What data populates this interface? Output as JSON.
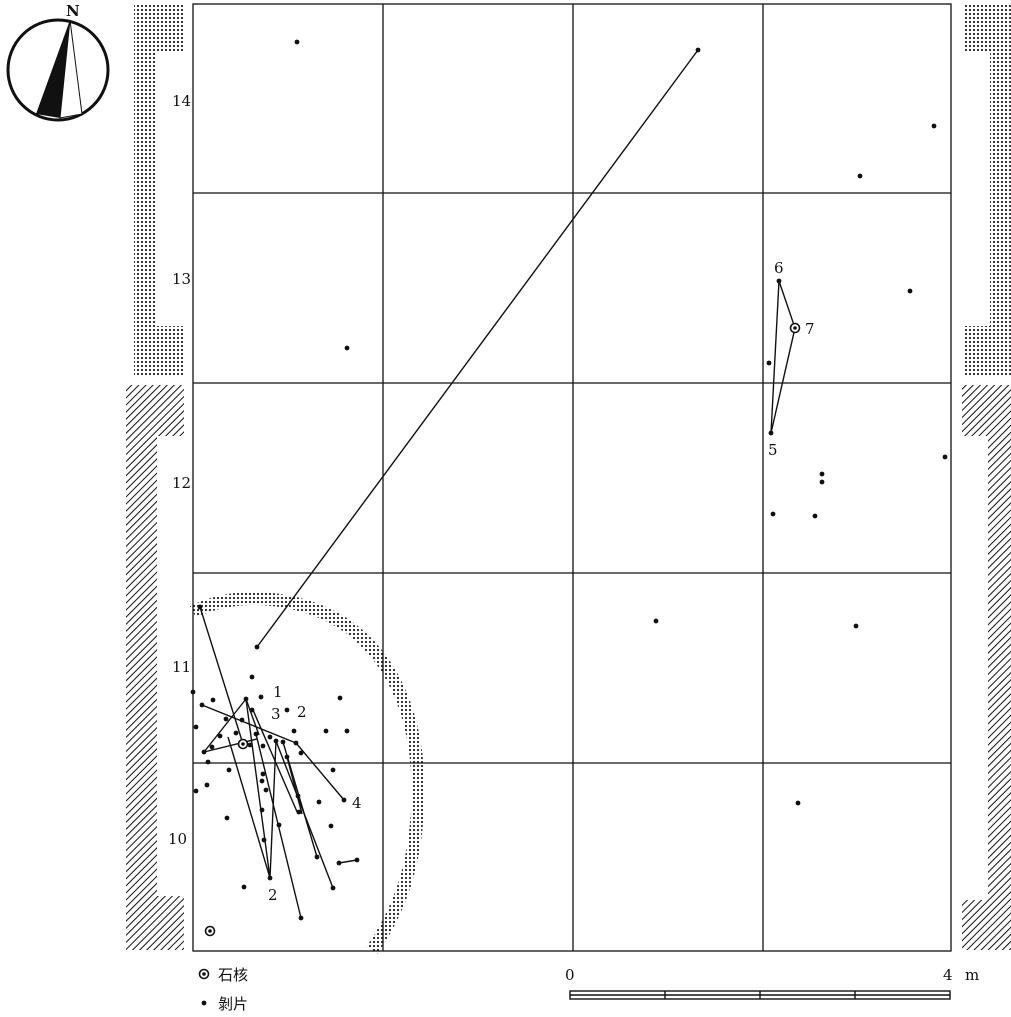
{
  "north_label": "N",
  "row_labels": [
    "14",
    "13",
    "12",
    "11",
    "10"
  ],
  "refit_labels": [
    "1",
    "2",
    "3",
    "2",
    "4",
    "5",
    "6",
    "7"
  ],
  "legend": {
    "core": "石核",
    "flake": "剝片"
  },
  "scale": {
    "start": "0",
    "end": "4",
    "unit": "m"
  },
  "colors": {
    "ink": "#111111",
    "paper": "#ffffff",
    "stipple": "#555555"
  }
}
